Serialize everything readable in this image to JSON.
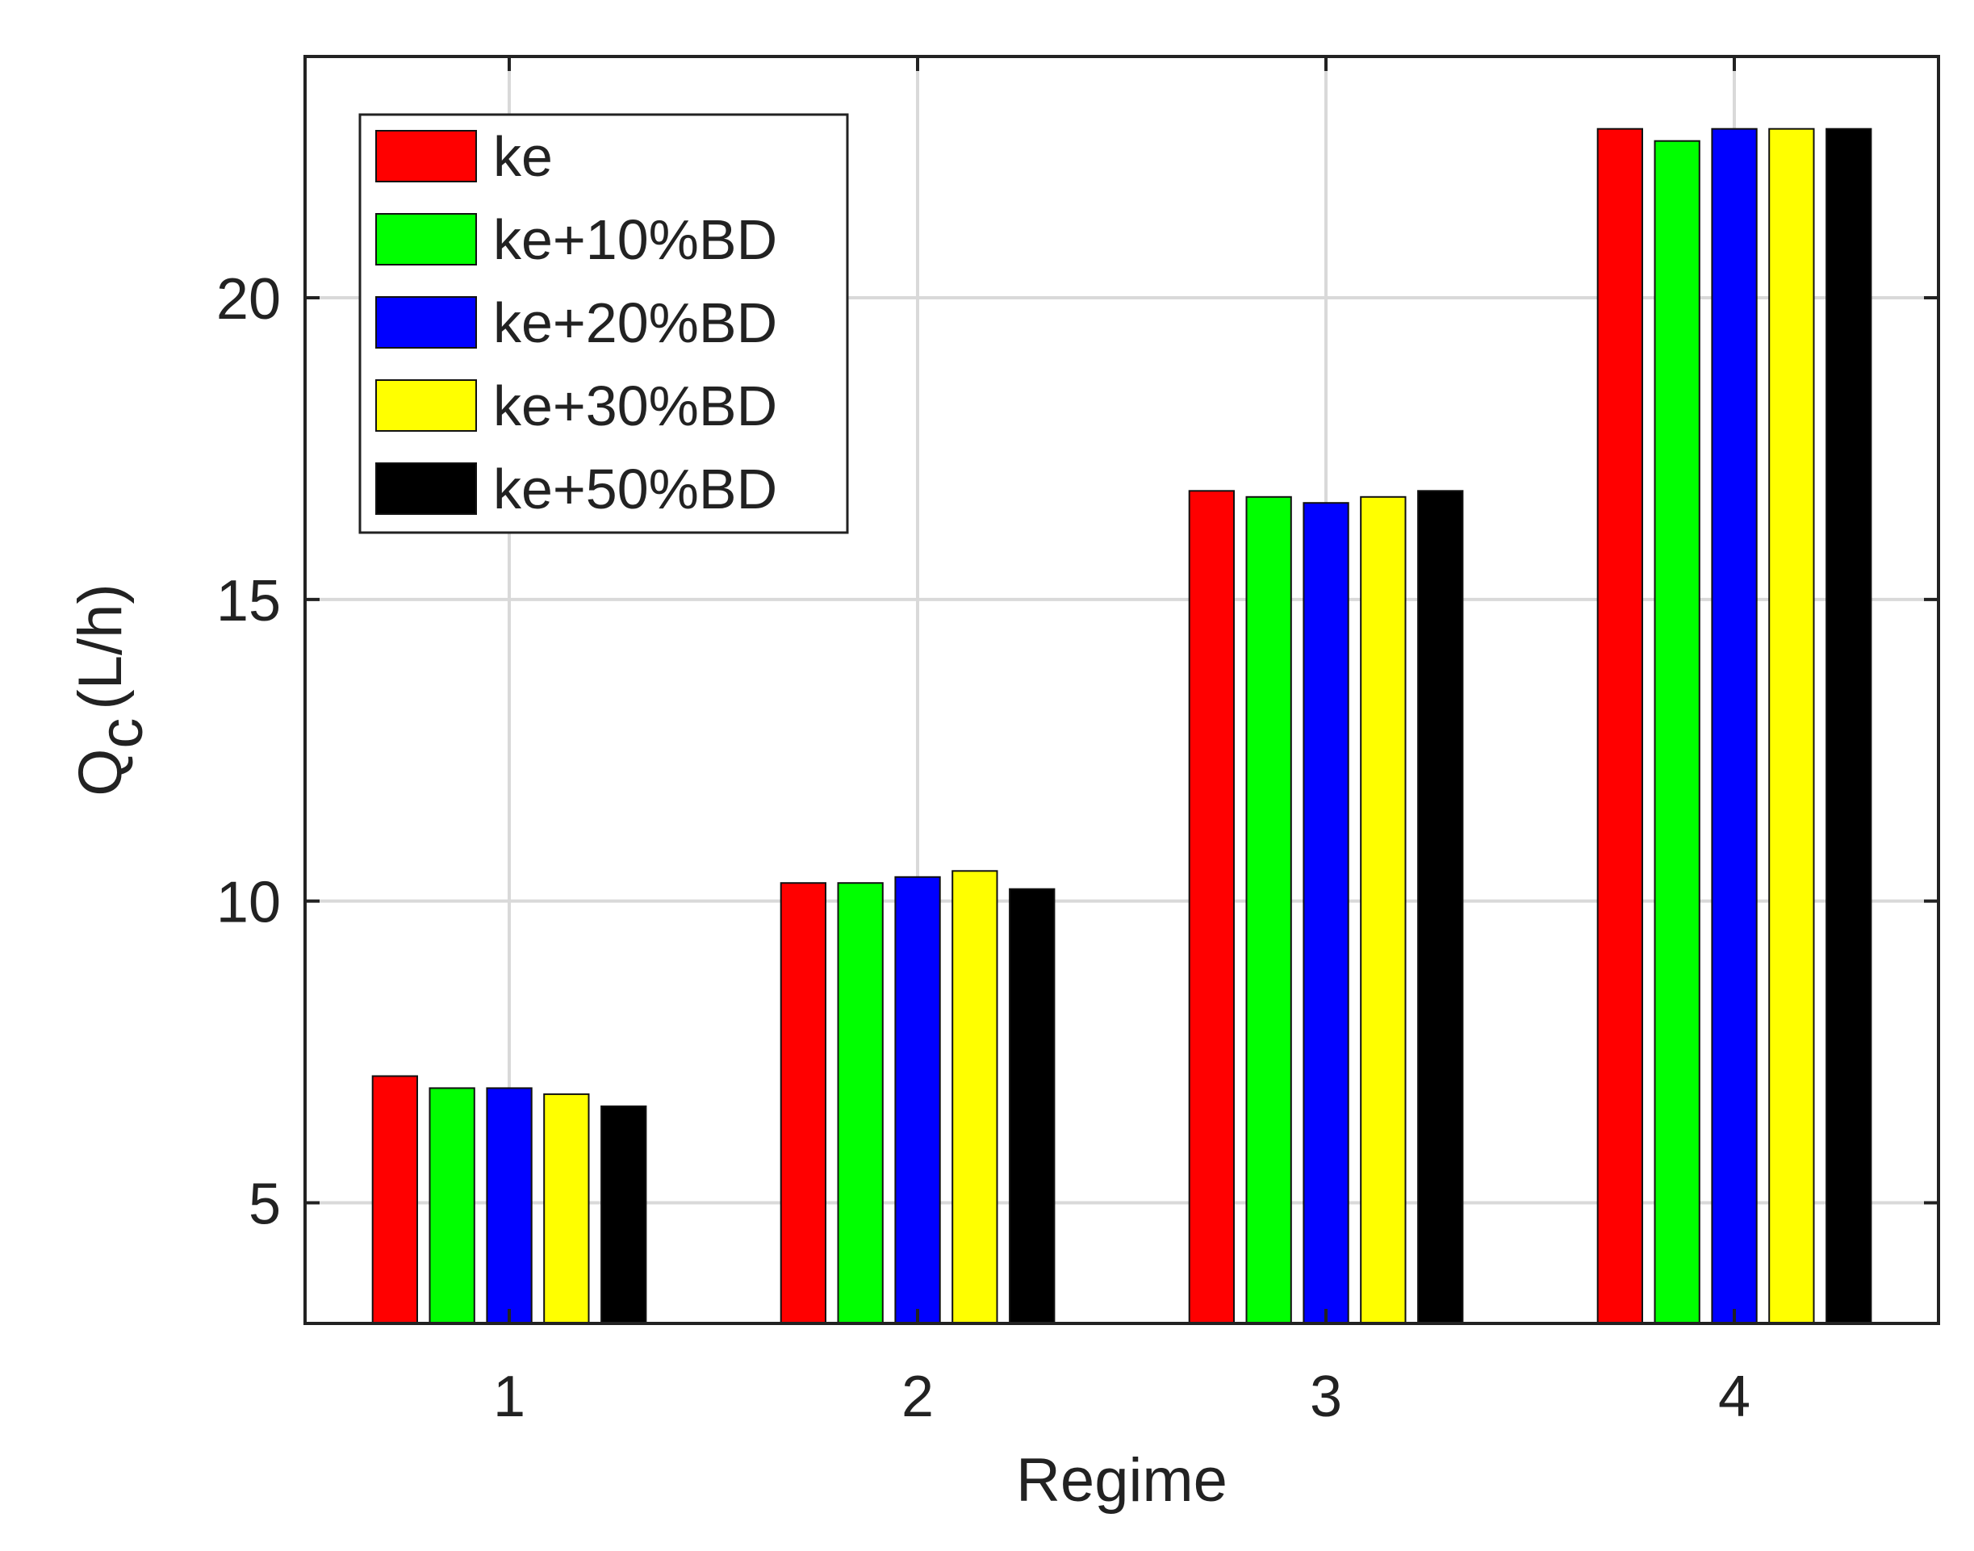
{
  "chart_data": {
    "type": "bar",
    "categories": [
      "1",
      "2",
      "3",
      "4"
    ],
    "xlabel": "Regime",
    "ylabel": {
      "main": "Q",
      "subscript": "c",
      "unit": "(L/h)"
    },
    "ylim": [
      3,
      24
    ],
    "yticks": [
      5,
      10,
      15,
      20
    ],
    "grid": true,
    "legend_position": "top-left",
    "series": [
      {
        "name": "ke",
        "color": "#ff0000",
        "values": [
          7.1,
          10.3,
          16.8,
          22.8
        ]
      },
      {
        "name": "ke+10%BD",
        "color": "#00ff00",
        "values": [
          6.9,
          10.3,
          16.7,
          22.6
        ]
      },
      {
        "name": "ke+20%BD",
        "color": "#0000ff",
        "values": [
          6.9,
          10.4,
          16.6,
          22.8
        ]
      },
      {
        "name": "ke+30%BD",
        "color": "#ffff00",
        "values": [
          6.8,
          10.5,
          16.7,
          22.8
        ]
      },
      {
        "name": "ke+50%BD",
        "color": "#000000",
        "values": [
          6.6,
          10.2,
          16.8,
          22.8
        ]
      }
    ]
  }
}
